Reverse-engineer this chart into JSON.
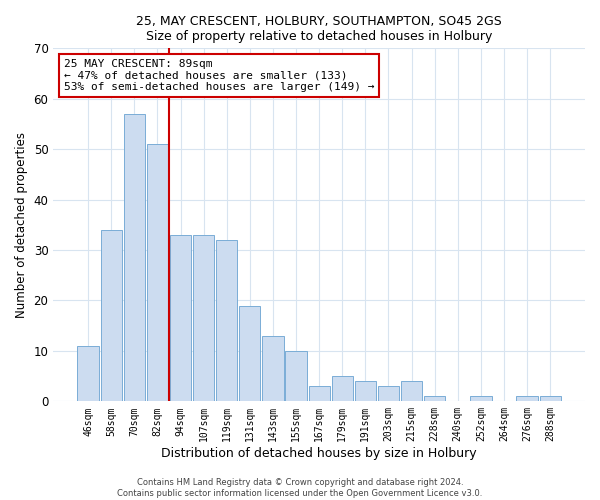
{
  "title1": "25, MAY CRESCENT, HOLBURY, SOUTHAMPTON, SO45 2GS",
  "title2": "Size of property relative to detached houses in Holbury",
  "xlabel": "Distribution of detached houses by size in Holbury",
  "ylabel": "Number of detached properties",
  "bar_labels": [
    "46sqm",
    "58sqm",
    "70sqm",
    "82sqm",
    "94sqm",
    "107sqm",
    "119sqm",
    "131sqm",
    "143sqm",
    "155sqm",
    "167sqm",
    "179sqm",
    "191sqm",
    "203sqm",
    "215sqm",
    "228sqm",
    "240sqm",
    "252sqm",
    "264sqm",
    "276sqm",
    "288sqm"
  ],
  "bar_values": [
    11,
    34,
    57,
    51,
    33,
    33,
    32,
    19,
    13,
    10,
    3,
    5,
    4,
    3,
    4,
    1,
    0,
    1,
    0,
    1,
    1
  ],
  "bar_color": "#ccdcf0",
  "bar_edge_color": "#7aadd6",
  "vline_x": 3.5,
  "vline_color": "#cc0000",
  "annotation_text": "25 MAY CRESCENT: 89sqm\n← 47% of detached houses are smaller (133)\n53% of semi-detached houses are larger (149) →",
  "annotation_box_color": "#ffffff",
  "annotation_box_edge": "#cc0000",
  "ylim": [
    0,
    70
  ],
  "yticks": [
    0,
    10,
    20,
    30,
    40,
    50,
    60,
    70
  ],
  "footer1": "Contains HM Land Registry data © Crown copyright and database right 2024.",
  "footer2": "Contains public sector information licensed under the Open Government Licence v3.0.",
  "bg_color": "#ffffff",
  "plot_bg_color": "#ffffff",
  "grid_color": "#d8e4f0"
}
